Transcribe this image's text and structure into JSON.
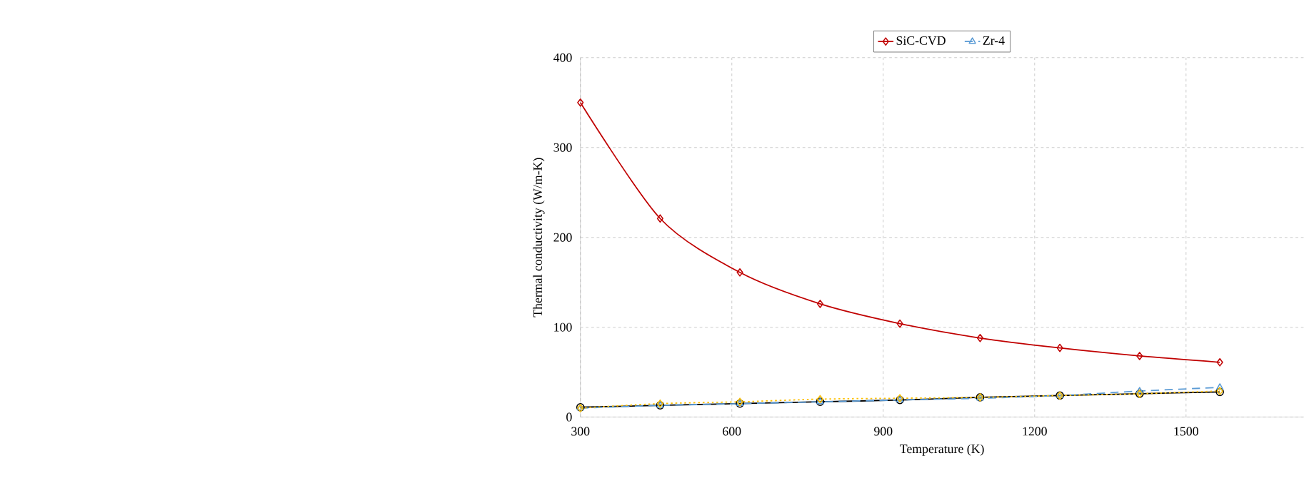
{
  "chart_data": {
    "type": "line",
    "xlabel": "Temperature (K)",
    "ylabel": "Thermal conductivity (W/m-K)",
    "x": [
      300,
      458,
      616,
      775,
      933,
      1092,
      1250,
      1408,
      1567
    ],
    "series": [
      {
        "color": "#000000",
        "marker": "circle",
        "line_style": "solid",
        "values": [
          11,
          13,
          15,
          17,
          19,
          22,
          24,
          26,
          28
        ]
      },
      {
        "name": "SiC-CVD",
        "color": "#c00000",
        "marker": "diamond",
        "line_style": "solid",
        "values": [
          350,
          221,
          161,
          126,
          104,
          88,
          77,
          68,
          61
        ]
      },
      {
        "name": "Zr-4",
        "color": "#5b9bd5",
        "marker": "triangle",
        "line_style": "dashed",
        "values": [
          10,
          13,
          15,
          17,
          19,
          21,
          24,
          29,
          33
        ]
      },
      {
        "color": "#ffc000",
        "marker": "diamond",
        "line_style": "dotted",
        "values": [
          10,
          15,
          17,
          20,
          21,
          22,
          24,
          26,
          29
        ]
      }
    ],
    "xlim": [
      300,
      1733
    ],
    "xticks": [
      300,
      600,
      900,
      1200,
      1500
    ],
    "ylim": [
      0,
      400
    ],
    "yticks": [
      0,
      100,
      200,
      300,
      400
    ],
    "grid": true,
    "legend": "top"
  }
}
